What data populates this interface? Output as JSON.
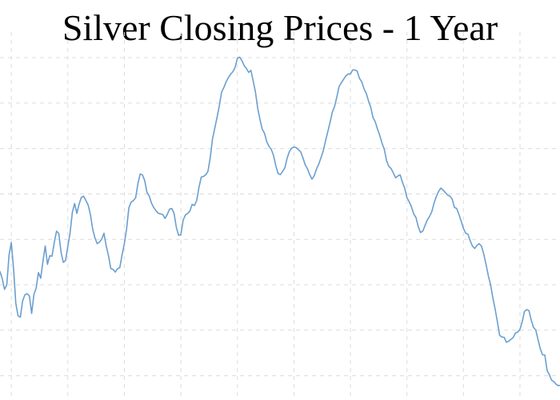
{
  "chart_data": {
    "type": "line",
    "title": "Silver Closing Prices - 1 Year",
    "xlabel": "",
    "ylabel": "",
    "grid": true,
    "xlim": [
      0,
      247
    ],
    "ylim": [
      12,
      27.6
    ],
    "colors": {
      "line": "#6a9fcf",
      "grid": "#dcdcdc"
    },
    "series": [
      {
        "values": [
          17.58,
          17.27,
          16.8,
          17.0,
          18.31,
          18.86,
          17.7,
          16.18,
          15.63,
          15.58,
          16.29,
          16.56,
          16.61,
          16.51,
          15.74,
          16.57,
          16.86,
          17.54,
          17.29,
          18.03,
          18.71,
          17.9,
          18.28,
          18.26,
          18.86,
          19.36,
          19.26,
          18.44,
          17.99,
          18.07,
          18.69,
          19.29,
          20.19,
          20.58,
          20.14,
          20.56,
          20.85,
          20.9,
          20.71,
          20.51,
          20.09,
          19.45,
          19.06,
          18.81,
          18.88,
          19.01,
          19.27,
          18.7,
          18.28,
          17.72,
          17.68,
          17.56,
          17.71,
          17.76,
          18.32,
          18.81,
          19.46,
          20.39,
          20.64,
          20.71,
          20.83,
          21.45,
          21.88,
          21.84,
          21.59,
          21.07,
          20.91,
          20.6,
          20.4,
          20.26,
          20.15,
          20.12,
          20.09,
          19.92,
          20.1,
          20.33,
          20.36,
          20.14,
          19.53,
          19.18,
          19.2,
          19.84,
          20.07,
          20.14,
          20.25,
          20.54,
          20.49,
          20.71,
          21.28,
          21.74,
          21.77,
          21.84,
          22.0,
          22.6,
          23.42,
          23.89,
          24.37,
          24.87,
          25.48,
          25.68,
          25.93,
          26.12,
          26.27,
          26.38,
          26.57,
          26.97,
          27.02,
          26.87,
          26.65,
          26.52,
          26.35,
          26.44,
          25.97,
          25.48,
          24.77,
          24.27,
          23.85,
          23.67,
          23.3,
          23.09,
          22.96,
          22.69,
          22.24,
          21.9,
          21.85,
          21.99,
          22.15,
          22.57,
          22.87,
          23.01,
          23.07,
          23.04,
          22.95,
          22.85,
          22.59,
          22.28,
          22.11,
          21.85,
          21.65,
          21.8,
          22.1,
          22.31,
          22.6,
          22.9,
          23.34,
          23.74,
          24.15,
          24.6,
          24.85,
          25.27,
          25.73,
          25.9,
          26.05,
          26.2,
          26.28,
          26.28,
          26.46,
          26.46,
          26.4,
          26.09,
          25.94,
          25.63,
          25.43,
          25.1,
          24.81,
          24.36,
          24.17,
          23.85,
          23.57,
          23.23,
          22.96,
          22.46,
          22.21,
          22.12,
          21.92,
          21.71,
          21.79,
          21.84,
          21.52,
          21.25,
          20.84,
          20.65,
          20.43,
          20.12,
          19.96,
          19.56,
          19.3,
          19.36,
          19.61,
          19.85,
          20.01,
          20.22,
          20.59,
          20.89,
          21.11,
          21.26,
          21.17,
          21.06,
          20.95,
          20.9,
          20.78,
          20.41,
          20.36,
          20.1,
          19.8,
          19.48,
          19.27,
          19.23,
          18.93,
          18.7,
          18.6,
          18.74,
          18.81,
          18.7,
          18.35,
          17.89,
          17.4,
          17.0,
          16.43,
          15.94,
          15.38,
          14.78,
          14.7,
          14.69,
          14.47,
          14.52,
          14.6,
          14.68,
          14.88,
          14.92,
          15.04,
          15.38,
          15.83,
          15.91,
          15.86,
          15.44,
          15.12,
          15.01,
          14.58,
          14.18,
          13.92,
          13.91,
          13.23,
          13.04,
          12.8,
          12.74,
          12.62,
          12.56,
          12.58,
          12.65
        ]
      }
    ]
  }
}
